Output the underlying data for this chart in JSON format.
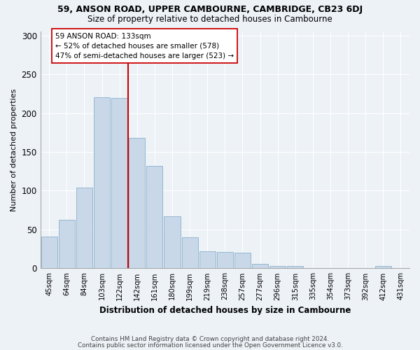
{
  "title1": "59, ANSON ROAD, UPPER CAMBOURNE, CAMBRIDGE, CB23 6DJ",
  "title2": "Size of property relative to detached houses in Cambourne",
  "xlabel": "Distribution of detached houses by size in Cambourne",
  "ylabel": "Number of detached properties",
  "categories": [
    "45sqm",
    "64sqm",
    "84sqm",
    "103sqm",
    "122sqm",
    "142sqm",
    "161sqm",
    "180sqm",
    "199sqm",
    "219sqm",
    "238sqm",
    "257sqm",
    "277sqm",
    "296sqm",
    "315sqm",
    "335sqm",
    "354sqm",
    "373sqm",
    "392sqm",
    "412sqm",
    "431sqm"
  ],
  "values": [
    41,
    63,
    104,
    220,
    219,
    168,
    132,
    67,
    40,
    22,
    21,
    20,
    6,
    3,
    3,
    0,
    0,
    0,
    0,
    3,
    0
  ],
  "bar_color": "#c8d8e8",
  "bar_edge_color": "#8ab0cc",
  "vline_x": 4.5,
  "vline_color": "#cc0000",
  "annotation_line1": "59 ANSON ROAD: 133sqm",
  "annotation_line2": "← 52% of detached houses are smaller (578)",
  "annotation_line3": "47% of semi-detached houses are larger (523) →",
  "annotation_box_color": "#ffffff",
  "annotation_box_edge": "#cc0000",
  "ylim": [
    0,
    305
  ],
  "yticks": [
    0,
    50,
    100,
    150,
    200,
    250,
    300
  ],
  "footer1": "Contains HM Land Registry data © Crown copyright and database right 2024.",
  "footer2": "Contains public sector information licensed under the Open Government Licence v3.0.",
  "background_color": "#edf2f7",
  "plot_background": "#edf2f7",
  "grid_color": "#ffffff"
}
